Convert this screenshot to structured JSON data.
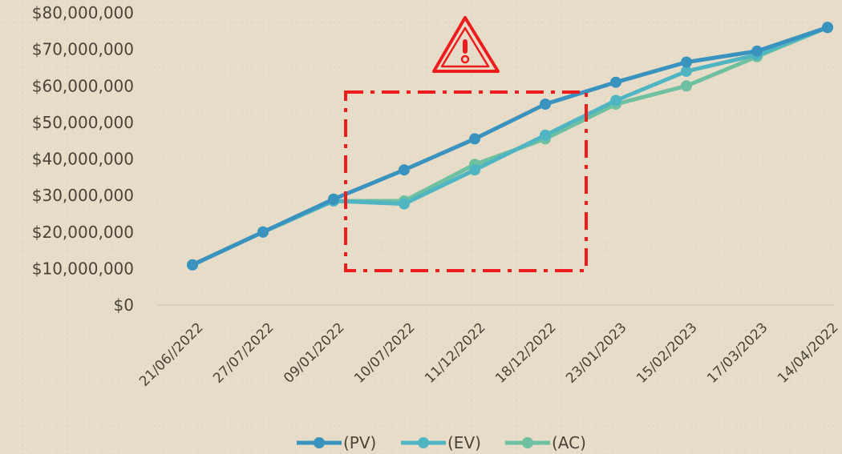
{
  "chart_data": {
    "type": "line",
    "categories": [
      "21/06//2022",
      "27/07/2022",
      "09/01/2022",
      "10/07/2022",
      "11/12/2022",
      "18/12/2022",
      "23/01/2023",
      "15/02/2023",
      "17/03/2023",
      "14/04/2022"
    ],
    "series": [
      {
        "name": "(PV)",
        "color": "#3a93be",
        "values": [
          11000000,
          20000000,
          29000000,
          37000000,
          45500000,
          55000000,
          61000000,
          66500000,
          69500000,
          76000000
        ]
      },
      {
        "name": "(EV)",
        "color": "#4fb5c2",
        "values": [
          11000000,
          20000000,
          28500000,
          27700000,
          37000000,
          46500000,
          56000000,
          64000000,
          68500000,
          76000000
        ]
      },
      {
        "name": "(AC)",
        "color": "#6ec0a0",
        "values": [
          11000000,
          20000000,
          28500000,
          28500000,
          38500000,
          45500000,
          55000000,
          60000000,
          68000000,
          76000000
        ]
      }
    ],
    "ytick_labels": [
      "$0",
      "$10,000,000",
      "$20,000,000",
      "$30,000,000",
      "$40,000,000",
      "$50,000,000",
      "$60,000,000",
      "$70,000,000",
      "$80,000,000"
    ],
    "ylim": [
      0,
      80000000
    ],
    "grid": false,
    "legend_position": "bottom"
  },
  "annotation": {
    "icon": "warning-triangle-icon",
    "color": "#ee1c1c",
    "highlight_box": "dash-dot rectangle around 10/07/2022–18/12/2022"
  }
}
